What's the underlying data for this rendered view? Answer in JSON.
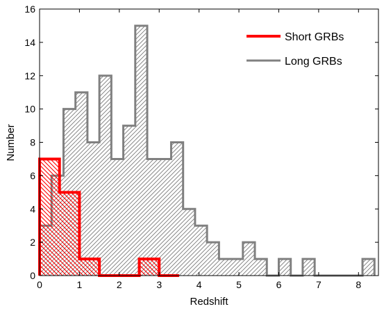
{
  "chart_data": {
    "type": "bar",
    "xlabel": "Redshift",
    "ylabel": "Number",
    "xlim": [
      0,
      8.5
    ],
    "ylim": [
      0,
      16
    ],
    "xticks": [
      0,
      1,
      2,
      3,
      4,
      5,
      6,
      7,
      8
    ],
    "yticks": [
      0,
      2,
      4,
      6,
      8,
      10,
      12,
      14,
      16
    ],
    "legend_position": "top-right",
    "series": [
      {
        "name": "Long GRBs",
        "color": "#808080",
        "style": "step-histogram-hatched",
        "bins": [
          {
            "x0": 0.0,
            "x1": 0.3,
            "value": 3
          },
          {
            "x0": 0.3,
            "x1": 0.6,
            "value": 6
          },
          {
            "x0": 0.6,
            "x1": 0.9,
            "value": 10
          },
          {
            "x0": 0.9,
            "x1": 1.2,
            "value": 11
          },
          {
            "x0": 1.2,
            "x1": 1.5,
            "value": 8
          },
          {
            "x0": 1.5,
            "x1": 1.8,
            "value": 12
          },
          {
            "x0": 1.8,
            "x1": 2.1,
            "value": 7
          },
          {
            "x0": 2.1,
            "x1": 2.4,
            "value": 9
          },
          {
            "x0": 2.4,
            "x1": 2.7,
            "value": 15
          },
          {
            "x0": 2.7,
            "x1": 3.3,
            "value": 7
          },
          {
            "x0": 3.3,
            "x1": 3.6,
            "value": 8
          },
          {
            "x0": 3.6,
            "x1": 3.9,
            "value": 4
          },
          {
            "x0": 3.9,
            "x1": 4.2,
            "value": 3
          },
          {
            "x0": 4.2,
            "x1": 4.5,
            "value": 2
          },
          {
            "x0": 4.5,
            "x1": 5.1,
            "value": 1
          },
          {
            "x0": 5.1,
            "x1": 5.4,
            "value": 2
          },
          {
            "x0": 5.4,
            "x1": 5.7,
            "value": 1
          },
          {
            "x0": 5.7,
            "x1": 6.0,
            "value": 0
          },
          {
            "x0": 6.0,
            "x1": 6.3,
            "value": 1
          },
          {
            "x0": 6.3,
            "x1": 6.6,
            "value": 0
          },
          {
            "x0": 6.6,
            "x1": 6.9,
            "value": 1
          },
          {
            "x0": 6.9,
            "x1": 8.1,
            "value": 0
          },
          {
            "x0": 8.1,
            "x1": 8.4,
            "value": 1
          }
        ]
      },
      {
        "name": "Short GRBs",
        "color": "#ff0000",
        "style": "step-histogram-hatched",
        "bins": [
          {
            "x0": 0.0,
            "x1": 0.5,
            "value": 7
          },
          {
            "x0": 0.5,
            "x1": 1.0,
            "value": 5
          },
          {
            "x0": 1.0,
            "x1": 1.5,
            "value": 1
          },
          {
            "x0": 1.5,
            "x1": 2.5,
            "value": 0
          },
          {
            "x0": 2.5,
            "x1": 3.0,
            "value": 1
          },
          {
            "x0": 3.0,
            "x1": 3.5,
            "value": 0
          }
        ]
      }
    ]
  }
}
